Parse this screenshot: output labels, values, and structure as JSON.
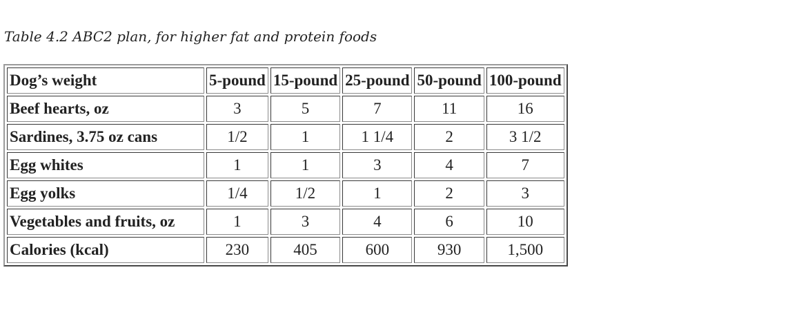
{
  "caption": "Table 4.2 ABC2 plan, for higher fat and protein foods",
  "table": {
    "headers": [
      "Dog’s weight",
      "5-pound",
      "15-pound",
      "25-pound",
      "50-pound",
      "100-pound"
    ],
    "rows": [
      {
        "label": "Beef hearts, oz",
        "values": [
          "3",
          "5",
          "7",
          "11",
          "16"
        ]
      },
      {
        "label": "Sardines, 3.75 oz cans",
        "values": [
          "1/2",
          "1",
          "1 1/4",
          "2",
          "3 1/2"
        ]
      },
      {
        "label": "Egg whites",
        "values": [
          "1",
          "1",
          "3",
          "4",
          "7"
        ]
      },
      {
        "label": "Egg yolks",
        "values": [
          "1/4",
          "1/2",
          "1",
          "2",
          "3"
        ]
      },
      {
        "label": "Vegetables and fruits, oz",
        "values": [
          "1",
          "3",
          "4",
          "6",
          "10"
        ]
      },
      {
        "label": "Calories (kcal)",
        "values": [
          "230",
          "405",
          "600",
          "930",
          "1,500"
        ]
      }
    ]
  }
}
